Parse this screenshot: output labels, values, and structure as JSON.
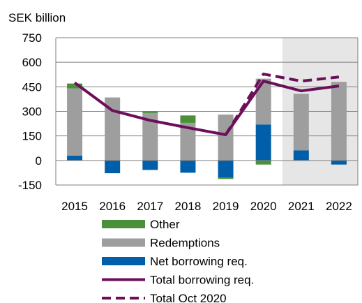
{
  "chart_data": {
    "type": "bar",
    "unit_label": "SEK billion",
    "categories": [
      "2015",
      "2016",
      "2017",
      "2018",
      "2019",
      "2020",
      "2021",
      "2022"
    ],
    "ylim": [
      -150,
      750
    ],
    "yticks": [
      750,
      600,
      450,
      300,
      150,
      0,
      -150
    ],
    "grid": true,
    "shaded_forecast_categories": [
      "2021",
      "2022"
    ],
    "shade_color": "#e6e6e6",
    "stacked_series": [
      {
        "name": "Net borrowing req.",
        "color": "#005fa8",
        "values": [
          30,
          -78,
          -58,
          -75,
          -103,
          220,
          62,
          -25
        ]
      },
      {
        "name": "Redemptions",
        "color": "#9e9e9e",
        "values": [
          410,
          385,
          290,
          230,
          280,
          280,
          345,
          480
        ]
      },
      {
        "name": "Other",
        "color": "#4c8f3a",
        "values": [
          30,
          0,
          10,
          45,
          -10,
          -25,
          0,
          0
        ]
      }
    ],
    "line_series": [
      {
        "name": "Total borrowing req.",
        "color": "#6b0f5a",
        "style": "solid",
        "categories": [
          "2015",
          "2016",
          "2017",
          "2018",
          "2019",
          "2020",
          "2021",
          "2022"
        ],
        "values": [
          475,
          305,
          245,
          200,
          157,
          485,
          425,
          455
        ]
      },
      {
        "name": "Total Oct 2020",
        "color": "#6b0f5a",
        "style": "dashed",
        "categories": [
          "2019",
          "2020",
          "2021",
          "2022"
        ],
        "values": [
          157,
          528,
          485,
          510
        ]
      }
    ],
    "legend_order": [
      "Other",
      "Redemptions",
      "Net borrowing req.",
      "Total borrowing req.",
      "Total Oct 2020"
    ],
    "legend_position": "bottom"
  }
}
